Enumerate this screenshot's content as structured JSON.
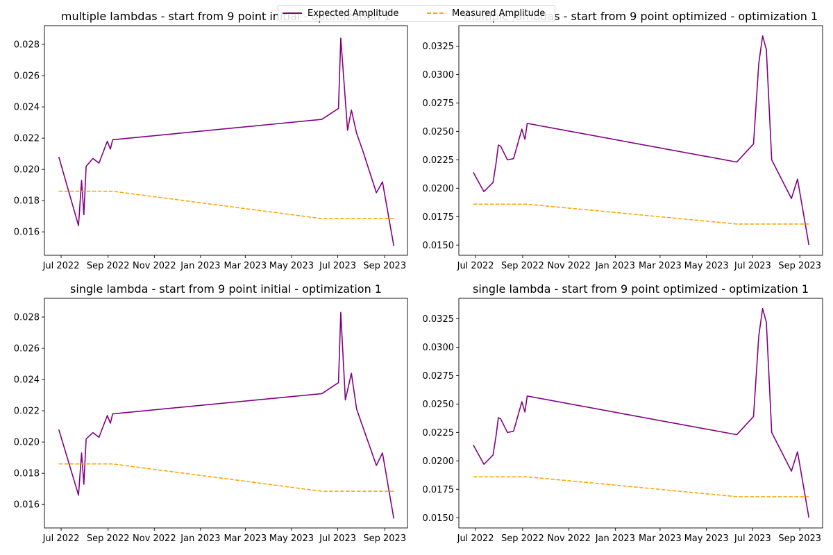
{
  "legend": {
    "location": "upper center",
    "entries": [
      {
        "label": "Expected Amplitude",
        "color": "#800080",
        "style": "solid"
      },
      {
        "label": "Measured Amplitude",
        "color": "#ffa500",
        "style": "dashed"
      }
    ]
  },
  "chart_data": [
    {
      "type": "line",
      "title": "multiple lambdas - start from 9 point initial - optimization 1",
      "xlabel": "",
      "ylabel": "",
      "xlim": [
        "2022-06-09",
        "2023-10-01"
      ],
      "ylim": [
        0.0145,
        0.0292
      ],
      "xticks": [
        {
          "date": "2022-07-01",
          "label": "Jul 2022"
        },
        {
          "date": "2022-09-01",
          "label": "Sep 2022"
        },
        {
          "date": "2022-11-01",
          "label": "Nov 2022"
        },
        {
          "date": "2023-01-01",
          "label": "Jan 2023"
        },
        {
          "date": "2023-03-01",
          "label": "Mar 2023"
        },
        {
          "date": "2023-05-01",
          "label": "May 2023"
        },
        {
          "date": "2023-07-01",
          "label": "Jul 2023"
        },
        {
          "date": "2023-09-01",
          "label": "Sep 2023"
        }
      ],
      "yticks": [
        {
          "value": 0.016,
          "label": "0.016"
        },
        {
          "value": 0.018,
          "label": "0.018"
        },
        {
          "value": 0.02,
          "label": "0.020"
        },
        {
          "value": 0.022,
          "label": "0.022"
        },
        {
          "value": 0.024,
          "label": "0.024"
        },
        {
          "value": 0.026,
          "label": "0.026"
        },
        {
          "value": 0.028,
          "label": "0.028"
        }
      ],
      "grid": false,
      "series": [
        {
          "name": "Expected Amplitude",
          "color": "#800080",
          "style": "solid",
          "x": [
            "2022-06-28",
            "2022-07-24",
            "2022-07-28",
            "2022-07-31",
            "2022-08-03",
            "2022-08-12",
            "2022-08-20",
            "2022-08-31",
            "2022-09-04",
            "2022-09-07",
            "2023-06-10",
            "2023-07-02",
            "2023-07-05",
            "2023-07-14",
            "2023-07-19",
            "2023-07-26",
            "2023-08-03",
            "2023-08-21",
            "2023-08-29",
            "2023-09-13"
          ],
          "y": [
            0.0208,
            0.0164,
            0.0193,
            0.0171,
            0.0202,
            0.0207,
            0.0204,
            0.0218,
            0.0213,
            0.0219,
            0.0232,
            0.0239,
            0.0284,
            0.0225,
            0.0238,
            0.0223,
            0.0212,
            0.0185,
            0.0192,
            0.0151
          ]
        },
        {
          "name": "Measured Amplitude",
          "color": "#ffa500",
          "style": "dashed",
          "x": [
            "2022-06-28",
            "2022-09-07",
            "2023-06-10",
            "2023-09-13"
          ],
          "y": [
            0.0186,
            0.0186,
            0.01685,
            0.01685
          ]
        }
      ]
    },
    {
      "type": "line",
      "title": "multiple lambdas - start from 9 point optimized - optimization 1",
      "xlabel": "",
      "ylabel": "",
      "xlim": [
        "2022-06-09",
        "2023-10-01"
      ],
      "ylim": [
        0.0141,
        0.0343
      ],
      "xticks": [
        {
          "date": "2022-07-01",
          "label": "Jul 2022"
        },
        {
          "date": "2022-09-01",
          "label": "Sep 2022"
        },
        {
          "date": "2022-11-01",
          "label": "Nov 2022"
        },
        {
          "date": "2023-01-01",
          "label": "Jan 2023"
        },
        {
          "date": "2023-03-01",
          "label": "Mar 2023"
        },
        {
          "date": "2023-05-01",
          "label": "May 2023"
        },
        {
          "date": "2023-07-01",
          "label": "Jul 2023"
        },
        {
          "date": "2023-09-01",
          "label": "Sep 2023"
        }
      ],
      "yticks": [
        {
          "value": 0.015,
          "label": "0.0150"
        },
        {
          "value": 0.0175,
          "label": "0.0175"
        },
        {
          "value": 0.02,
          "label": "0.0200"
        },
        {
          "value": 0.0225,
          "label": "0.0225"
        },
        {
          "value": 0.025,
          "label": "0.0250"
        },
        {
          "value": 0.0275,
          "label": "0.0275"
        },
        {
          "value": 0.03,
          "label": "0.0300"
        },
        {
          "value": 0.0325,
          "label": "0.0325"
        }
      ],
      "grid": false,
      "series": [
        {
          "name": "Expected Amplitude",
          "color": "#800080",
          "style": "solid",
          "x": [
            "2022-06-28",
            "2022-07-12",
            "2022-07-24",
            "2022-07-28",
            "2022-07-31",
            "2022-08-03",
            "2022-08-12",
            "2022-08-20",
            "2022-08-31",
            "2022-09-04",
            "2022-09-07",
            "2023-06-10",
            "2023-07-02",
            "2023-07-09",
            "2023-07-14",
            "2023-07-19",
            "2023-07-26",
            "2023-08-21",
            "2023-08-29",
            "2023-09-13"
          ],
          "y": [
            0.0214,
            0.0197,
            0.0205,
            0.0222,
            0.0238,
            0.0237,
            0.0225,
            0.0226,
            0.0252,
            0.0243,
            0.0257,
            0.0223,
            0.0239,
            0.031,
            0.0334,
            0.0322,
            0.0225,
            0.0191,
            0.0208,
            0.015
          ]
        },
        {
          "name": "Measured Amplitude",
          "color": "#ffa500",
          "style": "dashed",
          "x": [
            "2022-06-28",
            "2022-09-07",
            "2023-06-10",
            "2023-09-13"
          ],
          "y": [
            0.0186,
            0.0186,
            0.01685,
            0.01685
          ]
        }
      ]
    },
    {
      "type": "line",
      "title": "single lambda - start from 9 point initial - optimization 1",
      "xlabel": "",
      "ylabel": "",
      "xlim": [
        "2022-06-09",
        "2023-10-01"
      ],
      "ylim": [
        0.0145,
        0.0292
      ],
      "xticks": [
        {
          "date": "2022-07-01",
          "label": "Jul 2022"
        },
        {
          "date": "2022-09-01",
          "label": "Sep 2022"
        },
        {
          "date": "2022-11-01",
          "label": "Nov 2022"
        },
        {
          "date": "2023-01-01",
          "label": "Jan 2023"
        },
        {
          "date": "2023-03-01",
          "label": "Mar 2023"
        },
        {
          "date": "2023-05-01",
          "label": "May 2023"
        },
        {
          "date": "2023-07-01",
          "label": "Jul 2023"
        },
        {
          "date": "2023-09-01",
          "label": "Sep 2023"
        }
      ],
      "yticks": [
        {
          "value": 0.016,
          "label": "0.016"
        },
        {
          "value": 0.018,
          "label": "0.018"
        },
        {
          "value": 0.02,
          "label": "0.020"
        },
        {
          "value": 0.022,
          "label": "0.022"
        },
        {
          "value": 0.024,
          "label": "0.024"
        },
        {
          "value": 0.026,
          "label": "0.026"
        },
        {
          "value": 0.028,
          "label": "0.028"
        }
      ],
      "grid": false,
      "series": [
        {
          "name": "Expected Amplitude",
          "color": "#800080",
          "style": "solid",
          "x": [
            "2022-06-28",
            "2022-07-24",
            "2022-07-28",
            "2022-07-31",
            "2022-08-03",
            "2022-08-12",
            "2022-08-20",
            "2022-08-31",
            "2022-09-04",
            "2022-09-07",
            "2023-06-10",
            "2023-07-02",
            "2023-07-05",
            "2023-07-11",
            "2023-07-19",
            "2023-07-26",
            "2023-08-21",
            "2023-08-29",
            "2023-09-13"
          ],
          "y": [
            0.0208,
            0.0166,
            0.0193,
            0.0173,
            0.0202,
            0.0206,
            0.0203,
            0.0217,
            0.0212,
            0.0218,
            0.0231,
            0.0238,
            0.0283,
            0.0227,
            0.0244,
            0.0221,
            0.0185,
            0.0193,
            0.0151
          ]
        },
        {
          "name": "Measured Amplitude",
          "color": "#ffa500",
          "style": "dashed",
          "x": [
            "2022-06-28",
            "2022-09-07",
            "2023-06-10",
            "2023-09-13"
          ],
          "y": [
            0.0186,
            0.0186,
            0.01685,
            0.01685
          ]
        }
      ]
    },
    {
      "type": "line",
      "title": "single lambda - start from 9 point optimized - optimization 1",
      "xlabel": "",
      "ylabel": "",
      "xlim": [
        "2022-06-09",
        "2023-10-01"
      ],
      "ylim": [
        0.0141,
        0.0343
      ],
      "xticks": [
        {
          "date": "2022-07-01",
          "label": "Jul 2022"
        },
        {
          "date": "2022-09-01",
          "label": "Sep 2022"
        },
        {
          "date": "2022-11-01",
          "label": "Nov 2022"
        },
        {
          "date": "2023-01-01",
          "label": "Jan 2023"
        },
        {
          "date": "2023-03-01",
          "label": "Mar 2023"
        },
        {
          "date": "2023-05-01",
          "label": "May 2023"
        },
        {
          "date": "2023-07-01",
          "label": "Jul 2023"
        },
        {
          "date": "2023-09-01",
          "label": "Sep 2023"
        }
      ],
      "yticks": [
        {
          "value": 0.015,
          "label": "0.0150"
        },
        {
          "value": 0.0175,
          "label": "0.0175"
        },
        {
          "value": 0.02,
          "label": "0.0200"
        },
        {
          "value": 0.0225,
          "label": "0.0225"
        },
        {
          "value": 0.025,
          "label": "0.0250"
        },
        {
          "value": 0.0275,
          "label": "0.0275"
        },
        {
          "value": 0.03,
          "label": "0.0300"
        },
        {
          "value": 0.0325,
          "label": "0.0325"
        }
      ],
      "grid": false,
      "series": [
        {
          "name": "Expected Amplitude",
          "color": "#800080",
          "style": "solid",
          "x": [
            "2022-06-28",
            "2022-07-12",
            "2022-07-24",
            "2022-07-28",
            "2022-07-31",
            "2022-08-03",
            "2022-08-12",
            "2022-08-20",
            "2022-08-31",
            "2022-09-04",
            "2022-09-07",
            "2023-06-10",
            "2023-07-02",
            "2023-07-09",
            "2023-07-14",
            "2023-07-19",
            "2023-07-26",
            "2023-08-21",
            "2023-08-29",
            "2023-09-13"
          ],
          "y": [
            0.0214,
            0.0197,
            0.0205,
            0.0222,
            0.0238,
            0.0237,
            0.0225,
            0.0226,
            0.0252,
            0.0243,
            0.0257,
            0.0223,
            0.0239,
            0.031,
            0.0334,
            0.0322,
            0.0225,
            0.0191,
            0.0208,
            0.015
          ]
        },
        {
          "name": "Measured Amplitude",
          "color": "#ffa500",
          "style": "dashed",
          "x": [
            "2022-06-28",
            "2022-09-07",
            "2023-06-10",
            "2023-09-13"
          ],
          "y": [
            0.0186,
            0.0186,
            0.01685,
            0.01685
          ]
        }
      ]
    }
  ]
}
